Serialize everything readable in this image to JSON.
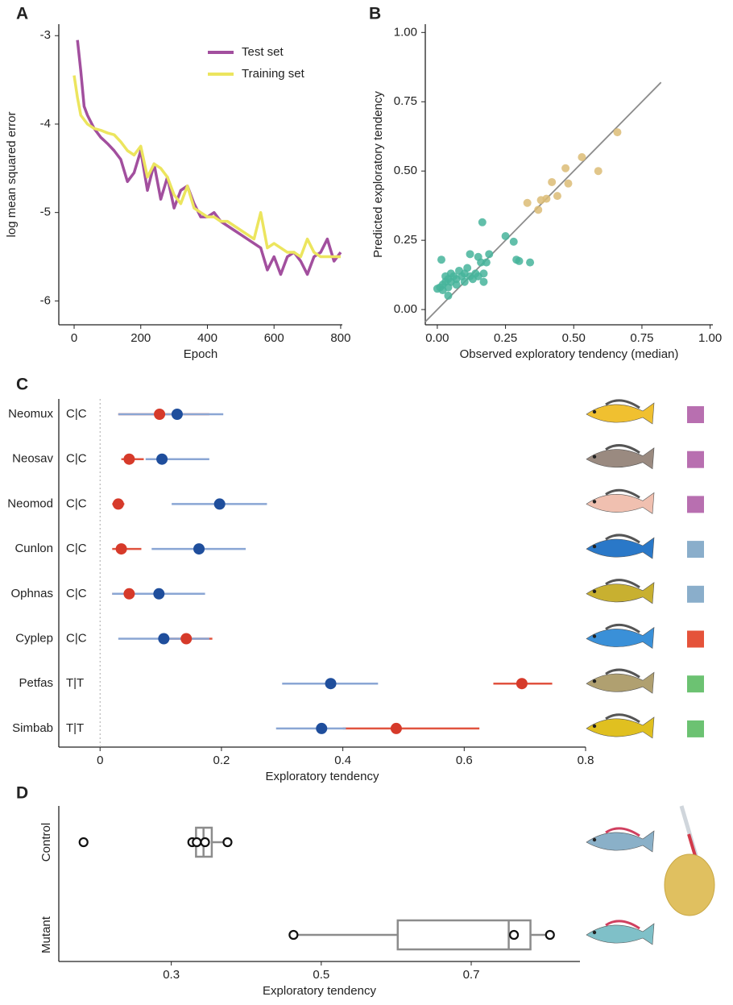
{
  "chart_data": [
    {
      "type": "line",
      "panel": "A",
      "xlabel": "Epoch",
      "ylabel": "log mean squared error",
      "xlim": [
        -46,
        805
      ],
      "ylim": [
        -6.27,
        -2.87
      ],
      "xticks": [
        0,
        200,
        400,
        600,
        800
      ],
      "yticks": [
        -6,
        -5,
        -4,
        -3
      ],
      "legend": "upper center",
      "series": [
        {
          "name": "Test set",
          "color": "#a24f9e",
          "x": [
            10,
            20,
            30,
            40,
            60,
            80,
            100,
            120,
            140,
            160,
            180,
            200,
            220,
            240,
            260,
            280,
            300,
            320,
            340,
            360,
            380,
            400,
            420,
            440,
            460,
            480,
            500,
            520,
            540,
            560,
            580,
            600,
            620,
            640,
            660,
            680,
            700,
            720,
            740,
            760,
            780,
            800
          ],
          "values": [
            -3.05,
            -3.4,
            -3.8,
            -3.9,
            -4.05,
            -4.15,
            -4.22,
            -4.3,
            -4.4,
            -4.65,
            -4.55,
            -4.3,
            -4.75,
            -4.45,
            -4.85,
            -4.6,
            -4.95,
            -4.75,
            -4.7,
            -4.9,
            -5.05,
            -5.05,
            -5.0,
            -5.1,
            -5.15,
            -5.2,
            -5.25,
            -5.3,
            -5.35,
            -5.4,
            -5.65,
            -5.5,
            -5.7,
            -5.5,
            -5.45,
            -5.55,
            -5.7,
            -5.5,
            -5.45,
            -5.3,
            -5.55,
            -5.45
          ]
        },
        {
          "name": "Training set",
          "color": "#ece55e",
          "x": [
            0,
            10,
            20,
            40,
            60,
            80,
            100,
            120,
            140,
            160,
            180,
            200,
            220,
            240,
            260,
            280,
            300,
            320,
            340,
            360,
            380,
            400,
            420,
            440,
            460,
            480,
            500,
            520,
            540,
            560,
            580,
            600,
            620,
            640,
            660,
            680,
            700,
            720,
            740,
            760,
            780,
            800
          ],
          "values": [
            -3.45,
            -3.7,
            -3.9,
            -4.0,
            -4.05,
            -4.07,
            -4.1,
            -4.12,
            -4.2,
            -4.3,
            -4.35,
            -4.25,
            -4.6,
            -4.45,
            -4.5,
            -4.6,
            -4.8,
            -4.9,
            -4.7,
            -4.95,
            -5.0,
            -5.05,
            -5.05,
            -5.1,
            -5.1,
            -5.15,
            -5.2,
            -5.25,
            -5.3,
            -5.0,
            -5.4,
            -5.35,
            -5.4,
            -5.45,
            -5.45,
            -5.5,
            -5.3,
            -5.45,
            -5.5,
            -5.5,
            -5.5,
            -5.5
          ]
        }
      ]
    },
    {
      "type": "scatter",
      "panel": "B",
      "xlabel": "Observed exploratory tendency (median)",
      "ylabel": "Predicted exploratory tendency",
      "xlim": [
        -0.044,
        1.01
      ],
      "ylim": [
        -0.055,
        1.03
      ],
      "xticks": [
        {
          "value": 0,
          "label": "0.00"
        },
        {
          "value": 0.25,
          "label": "0.25"
        },
        {
          "value": 0.5,
          "label": "0.50"
        },
        {
          "value": 0.75,
          "label": "0.75"
        },
        {
          "value": 1,
          "label": "1.00"
        }
      ],
      "yticks": [
        {
          "value": 0,
          "label": "0.00"
        },
        {
          "value": 0.25,
          "label": "0.25"
        },
        {
          "value": 0.5,
          "label": "0.50"
        },
        {
          "value": 0.75,
          "label": "0.75"
        },
        {
          "value": 1,
          "label": "1.00"
        }
      ],
      "reference_line": {
        "color": "#8c8c8c",
        "x": [
          -0.044,
          0.82
        ],
        "y": [
          -0.044,
          0.82
        ]
      },
      "series": [
        {
          "color": "#46b49b",
          "x": [
            0.0,
            0.01,
            0.02,
            0.02,
            0.03,
            0.03,
            0.04,
            0.04,
            0.05,
            0.05,
            0.06,
            0.07,
            0.07,
            0.08,
            0.09,
            0.1,
            0.1,
            0.11,
            0.12,
            0.12,
            0.13,
            0.14,
            0.15,
            0.15,
            0.16,
            0.17,
            0.17,
            0.18,
            0.19,
            0.015,
            0.04,
            0.165,
            0.25,
            0.28,
            0.29,
            0.3,
            0.34
          ],
          "values": [
            0.075,
            0.08,
            0.09,
            0.07,
            0.1,
            0.12,
            0.11,
            0.08,
            0.13,
            0.1,
            0.12,
            0.09,
            0.11,
            0.14,
            0.12,
            0.13,
            0.1,
            0.15,
            0.12,
            0.2,
            0.11,
            0.13,
            0.19,
            0.12,
            0.17,
            0.13,
            0.1,
            0.17,
            0.2,
            0.18,
            0.05,
            0.315,
            0.265,
            0.245,
            0.18,
            0.175,
            0.17
          ]
        },
        {
          "color": "#dcbc76",
          "x": [
            0.66,
            0.53,
            0.47,
            0.59,
            0.42,
            0.48,
            0.44,
            0.4,
            0.38,
            0.37,
            0.33
          ],
          "values": [
            0.64,
            0.55,
            0.51,
            0.5,
            0.46,
            0.455,
            0.41,
            0.4,
            0.395,
            0.36,
            0.385
          ]
        }
      ]
    },
    {
      "type": "dot",
      "panel": "C",
      "xlabel": "Exploratory tendency",
      "xlim": [
        -0.068,
        0.8
      ],
      "xticks": [
        0,
        0.2,
        0.4,
        0.6,
        0.8
      ],
      "zero_line": 0,
      "categories": [
        "Neomux",
        "Neosav",
        "Neomod",
        "Cunlon",
        "Ophnas",
        "Cyplep",
        "Petfas",
        "Simbab"
      ],
      "genotypes": [
        "C|C",
        "C|C",
        "C|C",
        "C|C",
        "C|C",
        "C|C",
        "T|T",
        "T|T"
      ],
      "group_colors": [
        "#b86fb0",
        "#b86fb0",
        "#b86fb0",
        "#8aaecb",
        "#8aaecb",
        "#e5533a",
        "#6cc272",
        "#6cc272"
      ],
      "series": [
        {
          "color": "#d63a2a",
          "ci_color": "#e0533f",
          "values": [
            0.098,
            0.048,
            0.03,
            0.035,
            0.048,
            0.142,
            0.695,
            0.488
          ],
          "ci": [
            [
              0.03,
              0.18
            ],
            [
              0.035,
              0.072
            ],
            [
              0.02,
              0.04
            ],
            [
              0.02,
              0.068
            ],
            [
              0.02,
              0.11
            ],
            [
              0.1,
              0.185
            ],
            [
              0.648,
              0.745
            ],
            [
              0.4,
              0.625
            ]
          ]
        },
        {
          "color": "#1f4e9c",
          "ci_color": "#8aa6d4",
          "values": [
            0.127,
            0.102,
            0.197,
            0.163,
            0.097,
            0.105,
            0.38,
            0.365
          ],
          "ci": [
            [
              0.03,
              0.203
            ],
            [
              0.075,
              0.18
            ],
            [
              0.118,
              0.275
            ],
            [
              0.085,
              0.24
            ],
            [
              0.02,
              0.173
            ],
            [
              0.03,
              0.18
            ],
            [
              0.3,
              0.458
            ],
            [
              0.29,
              0.405
            ]
          ]
        }
      ]
    },
    {
      "type": "box",
      "panel": "D",
      "xlabel": "Exploratory tendency",
      "xlim": [
        0.15,
        0.845
      ],
      "xticks": [
        0.3,
        0.5,
        0.7
      ],
      "color": "#8c8c8c",
      "categories": [
        "Control",
        "Mutant"
      ],
      "boxes": [
        {
          "whisker_low": 0.333,
          "q1": 0.333,
          "median": 0.343,
          "q3": 0.354,
          "whisker_high": 0.375,
          "points": [
            0.183,
            0.328,
            0.334,
            0.345,
            0.375
          ]
        },
        {
          "whisker_low": 0.463,
          "q1": 0.602,
          "median": 0.75,
          "q3": 0.779,
          "whisker_high": 0.805,
          "points": [
            0.463,
            0.757,
            0.805
          ]
        }
      ]
    }
  ]
}
